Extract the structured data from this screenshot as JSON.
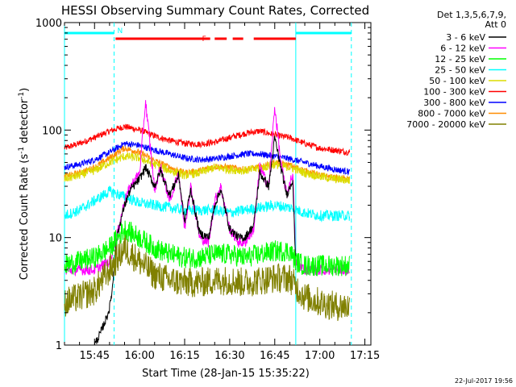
{
  "chart_data": {
    "type": "line",
    "title": "HESSI Observing Summary Count Rates, Corrected",
    "xlabel": "Start Time (28-Jan-15 15:35:22)",
    "ylabel_parts": [
      "Corrected Count Rate (s",
      "-1",
      " detector",
      "-1",
      ")"
    ],
    "yscale": "log",
    "ylim": [
      1,
      1000
    ],
    "xlim_minutes_after_1535": [
      0,
      102
    ],
    "x_ticks": [
      {
        "label": "15:45",
        "minutes": 10
      },
      {
        "label": "16:00",
        "minutes": 25
      },
      {
        "label": "16:15",
        "minutes": 40
      },
      {
        "label": "16:30",
        "minutes": 55
      },
      {
        "label": "16:45",
        "minutes": 70
      },
      {
        "label": "17:00",
        "minutes": 85
      },
      {
        "label": "17:15",
        "minutes": 100
      }
    ],
    "y_ticks": [
      {
        "label": "1",
        "value": 1
      },
      {
        "label": "10",
        "value": 10
      },
      {
        "label": "100",
        "value": 100
      },
      {
        "label": "1000",
        "value": 1000
      }
    ],
    "legend": {
      "placement": "right",
      "header": [
        "Det 1,3,5,6,7,9,",
        "Att 0"
      ],
      "entries": [
        {
          "label": "3 - 6 keV",
          "color": "#000000"
        },
        {
          "label": "6 - 12 keV",
          "color": "#ff00ff"
        },
        {
          "label": "12 - 25 keV",
          "color": "#00ff00"
        },
        {
          "label": "25 - 50 keV",
          "color": "#00ffff"
        },
        {
          "label": "50 - 100 keV",
          "color": "#dcdc00"
        },
        {
          "label": "100 - 300 keV",
          "color": "#ff0000"
        },
        {
          "label": "300 - 800 keV",
          "color": "#0000ff"
        },
        {
          "label": "800 - 7000 keV",
          "color": "#ff8c00"
        },
        {
          "label": "7000 - 20000 keV",
          "color": "#808000"
        }
      ]
    },
    "flags": [
      {
        "label": "N",
        "color": "#00ffff",
        "intervals": [
          [
            0,
            16.5
          ],
          [
            77,
            95.5
          ]
        ]
      },
      {
        "label": "F",
        "color": "#ff0000",
        "intervals": [
          [
            17,
            48.5
          ],
          [
            50,
            54
          ],
          [
            56,
            59.5
          ],
          [
            63,
            77
          ]
        ]
      }
    ],
    "vertical_markers": [
      {
        "color": "#00ffff",
        "style": "solid",
        "x": [
          0,
          77
        ]
      },
      {
        "color": "#00ffff",
        "style": "dashed",
        "x": [
          16.5,
          95.5
        ]
      }
    ],
    "series": [
      {
        "name": "100 - 300 keV",
        "color": "#ff0000",
        "x": [
          0,
          5,
          10,
          15,
          20,
          25,
          30,
          35,
          40,
          45,
          50,
          55,
          60,
          65,
          70,
          75,
          80,
          85,
          90,
          95
        ],
        "values": [
          68,
          75,
          85,
          98,
          108,
          100,
          88,
          80,
          75,
          74,
          77,
          85,
          93,
          98,
          90,
          85,
          75,
          68,
          65,
          62
        ]
      },
      {
        "name": "300 - 800 keV",
        "color": "#0000ff",
        "x": [
          0,
          5,
          10,
          15,
          20,
          25,
          30,
          35,
          40,
          45,
          50,
          55,
          60,
          65,
          70,
          75,
          80,
          85,
          90,
          95
        ],
        "values": [
          45,
          48,
          53,
          62,
          75,
          72,
          65,
          60,
          55,
          53,
          54,
          57,
          60,
          60,
          57,
          54,
          50,
          46,
          43,
          41
        ]
      },
      {
        "name": "800 - 7000 keV",
        "color": "#ff8c00",
        "x": [
          0,
          5,
          10,
          15,
          20,
          25,
          30,
          35,
          40,
          45,
          50,
          55,
          60,
          65,
          70,
          75,
          80,
          85,
          90,
          95
        ],
        "values": [
          37,
          40,
          45,
          55,
          68,
          62,
          52,
          45,
          40,
          42,
          46,
          45,
          43,
          45,
          50,
          47,
          42,
          38,
          36,
          35
        ]
      },
      {
        "name": "50 - 100 keV",
        "color": "#dcdc00",
        "x": [
          0,
          5,
          10,
          15,
          20,
          25,
          30,
          35,
          40,
          45,
          50,
          55,
          60,
          65,
          70,
          75,
          80,
          85,
          90,
          95
        ],
        "values": [
          35,
          38,
          42,
          50,
          57,
          55,
          48,
          42,
          38,
          40,
          45,
          43,
          42,
          44,
          48,
          45,
          40,
          37,
          35,
          34
        ]
      },
      {
        "name": "25 - 50 keV",
        "color": "#00ffff",
        "x": [
          0,
          5,
          10,
          15,
          20,
          25,
          30,
          35,
          40,
          45,
          50,
          55,
          60,
          65,
          70,
          75,
          80,
          85,
          90,
          95
        ],
        "values": [
          16,
          18,
          22,
          27,
          24,
          21,
          20,
          19,
          18,
          18,
          18,
          17,
          18,
          19,
          20,
          19,
          17,
          16,
          16,
          16
        ]
      },
      {
        "name": "6 - 12 keV",
        "color": "#ff00ff",
        "x": [
          0,
          5,
          10,
          15,
          18,
          20,
          22,
          25,
          27,
          30,
          32,
          35,
          38,
          40,
          42,
          45,
          48,
          50,
          52,
          55,
          58,
          60,
          63,
          65,
          68,
          70,
          72,
          74,
          76,
          77,
          80,
          85,
          90,
          95
        ],
        "values": [
          5,
          5,
          5,
          6,
          12,
          22,
          30,
          40,
          185,
          28,
          45,
          22,
          40,
          12,
          30,
          10,
          9,
          22,
          30,
          12,
          9,
          9,
          12,
          45,
          30,
          165,
          50,
          25,
          40,
          6,
          5,
          5,
          5,
          5
        ]
      },
      {
        "name": "3 - 6 keV",
        "color": "#000000",
        "x": [
          10,
          12,
          14,
          15,
          16,
          17,
          18,
          20,
          22,
          25,
          27,
          30,
          32,
          35,
          38,
          40,
          42,
          45,
          48,
          50,
          52,
          55,
          58,
          60,
          63,
          65,
          68,
          70,
          72,
          74,
          76,
          77
        ],
        "values": [
          1,
          1.3,
          1.8,
          2.2,
          3.5,
          8,
          12,
          20,
          28,
          35,
          45,
          30,
          42,
          25,
          38,
          14,
          28,
          11,
          10,
          20,
          28,
          12,
          10,
          10,
          13,
          40,
          30,
          85,
          45,
          25,
          35,
          5
        ]
      },
      {
        "name": "12 - 25 keV",
        "color": "#00ff00",
        "x": [
          0,
          5,
          10,
          15,
          20,
          25,
          30,
          35,
          40,
          45,
          50,
          55,
          60,
          65,
          70,
          75,
          77,
          80,
          85,
          90,
          95
        ],
        "values": [
          5.5,
          6,
          6.5,
          8,
          12,
          10,
          8,
          7,
          6.5,
          6.5,
          7,
          7,
          6.5,
          7,
          7.5,
          7.5,
          6,
          5.5,
          5.5,
          5.5,
          5.5
        ]
      },
      {
        "name": "7000 - 20000 keV",
        "color": "#808000",
        "x": [
          0,
          5,
          10,
          15,
          20,
          25,
          30,
          35,
          40,
          45,
          50,
          55,
          60,
          65,
          70,
          75,
          77,
          80,
          85,
          90,
          95
        ],
        "values": [
          2.5,
          2.8,
          3.2,
          5,
          8,
          6,
          4.5,
          4,
          3.8,
          3.8,
          4,
          4,
          3.8,
          4,
          4.2,
          4.2,
          3.5,
          2.8,
          2.5,
          2.3,
          2.3
        ]
      }
    ]
  },
  "footer": {
    "timestamp": "22-Jul-2017 19:56"
  }
}
